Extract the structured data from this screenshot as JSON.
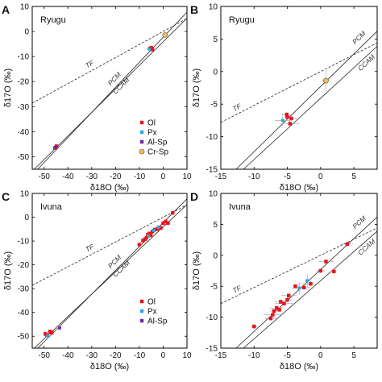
{
  "colors": {
    "Ol": "#e8141c",
    "Px": "#2aa6e0",
    "Al-Sp": "#6a2aa0",
    "Cr-Sp": "#f2c14e"
  },
  "ref_lines": {
    "tf": "TF",
    "pcm": "PCM",
    "ccam": "CCAM"
  },
  "chart_data": [
    {
      "panel": "A",
      "sample": "Ryugu",
      "type": "scatter",
      "xlabel": "δ18O (‰)",
      "ylabel": "δ17O (‰)",
      "xlim": [
        -55,
        10
      ],
      "ylim": [
        -55,
        10
      ],
      "xticks": [
        "-50",
        "-40",
        "-30",
        "-20",
        "-10",
        "0",
        "10"
      ],
      "yticks": [
        "-50",
        "-40",
        "-30",
        "-20",
        "-10",
        "0",
        "10"
      ],
      "legend": {
        "position": "bottom-right",
        "entries": [
          "Ol",
          "Px",
          "Al-Sp",
          "Cr-Sp"
        ]
      },
      "series": [
        {
          "name": "Ol",
          "points": [
            [
              -45.5,
              -46.5
            ],
            [
              -44.8,
              -45.8
            ],
            [
              -5.5,
              -6.8
            ],
            [
              -4.5,
              -7.2
            ],
            [
              -5.0,
              -6.5
            ]
          ]
        },
        {
          "name": "Px",
          "points": [
            [
              -5.8,
              -7.0
            ]
          ]
        },
        {
          "name": "Al-Sp",
          "points": [
            [
              -45.2,
              -46.2
            ]
          ]
        },
        {
          "name": "Cr-Sp",
          "points": [
            [
              0.8,
              -1.4
            ]
          ]
        }
      ]
    },
    {
      "panel": "B",
      "sample": "Ryugu",
      "type": "scatter",
      "xlabel": "δ18O (‰)",
      "ylabel": "δ17O (‰)",
      "xlim": [
        -15,
        8.5
      ],
      "ylim": [
        -15,
        10
      ],
      "xticks": [
        "-15",
        "-10",
        "-5",
        "0",
        "5"
      ],
      "yticks": [
        "-15",
        "-10",
        "-5",
        "0",
        "5",
        "10"
      ],
      "series": [
        {
          "name": "Ol",
          "points": [
            [
              -5.0,
              -7.0
            ],
            [
              -4.4,
              -7.2
            ],
            [
              -4.6,
              -8.0
            ],
            [
              -5.1,
              -6.6
            ]
          ]
        },
        {
          "name": "Px",
          "points": [
            [
              -5.7,
              -7.5
            ]
          ]
        },
        {
          "name": "Cr-Sp",
          "points": [
            [
              0.8,
              -1.4
            ]
          ]
        }
      ]
    },
    {
      "panel": "C",
      "sample": "Ivuna",
      "type": "scatter",
      "xlabel": "δ18O (‰)",
      "ylabel": "δ17O (‰)",
      "xlim": [
        -55,
        10
      ],
      "ylim": [
        -55,
        10
      ],
      "xticks": [
        "-50",
        "-40",
        "-30",
        "-20",
        "-10",
        "0",
        "10"
      ],
      "yticks": [
        "-50",
        "-40",
        "-30",
        "-20",
        "-10",
        "0",
        "10"
      ],
      "legend": {
        "position": "bottom-right",
        "entries": [
          "Ol",
          "Px",
          "Al-Sp"
        ]
      },
      "series": [
        {
          "name": "Ol",
          "points": [
            [
              -49.5,
              -49
            ],
            [
              -48.8,
              -49.5
            ],
            [
              -47.5,
              -48
            ],
            [
              -46.8,
              -48.5
            ],
            [
              -10,
              -11.5
            ],
            [
              -8.5,
              -9.8
            ],
            [
              -7.6,
              -9.2
            ],
            [
              -7,
              -8.6
            ],
            [
              -6.5,
              -7.4
            ],
            [
              -5.8,
              -6.8
            ],
            [
              -5.2,
              -7.6
            ],
            [
              -4.5,
              -6
            ],
            [
              -3.5,
              -5.2
            ],
            [
              -2.5,
              -5
            ],
            [
              -1,
              -4.5
            ],
            [
              0,
              -2.5
            ],
            [
              1,
              -1.8
            ],
            [
              2,
              -2.5
            ],
            [
              4,
              1.8
            ]
          ]
        },
        {
          "name": "Px",
          "points": [
            [
              -6.2,
              -7.8
            ],
            [
              -4,
              -5.6
            ],
            [
              -2,
              -4.2
            ],
            [
              -48.5,
              -49.8
            ]
          ]
        },
        {
          "name": "Al-Sp",
          "points": [
            [
              -43.5,
              -46.5
            ]
          ]
        }
      ]
    },
    {
      "panel": "D",
      "sample": "Ivuna",
      "type": "scatter",
      "xlabel": "δ18O (‰)",
      "ylabel": "δ17O (‰)",
      "xlim": [
        -15,
        8.5
      ],
      "ylim": [
        -15,
        10
      ],
      "xticks": [
        "-15",
        "-10",
        "-5",
        "0",
        "5"
      ],
      "yticks": [
        "-15",
        "-10",
        "-5",
        "0",
        "5",
        "10"
      ],
      "series": [
        {
          "name": "Ol",
          "points": [
            [
              -10,
              -11.5
            ],
            [
              -7.5,
              -10.2
            ],
            [
              -7.2,
              -9.6
            ],
            [
              -7,
              -9
            ],
            [
              -6.6,
              -8.5
            ],
            [
              -6.2,
              -8.8
            ],
            [
              -6,
              -7.5
            ],
            [
              -5.5,
              -7.8
            ],
            [
              -5,
              -7.2
            ],
            [
              -4.8,
              -6.5
            ],
            [
              -3.8,
              -5
            ],
            [
              -2.5,
              -5.2
            ],
            [
              -1.5,
              -4.6
            ],
            [
              0,
              -2.5
            ],
            [
              0.8,
              -1
            ],
            [
              2,
              -2.6
            ],
            [
              4,
              1.8
            ]
          ]
        },
        {
          "name": "Px",
          "points": [
            [
              -3.2,
              -5.3
            ],
            [
              -2,
              -4.1
            ]
          ]
        }
      ]
    }
  ]
}
